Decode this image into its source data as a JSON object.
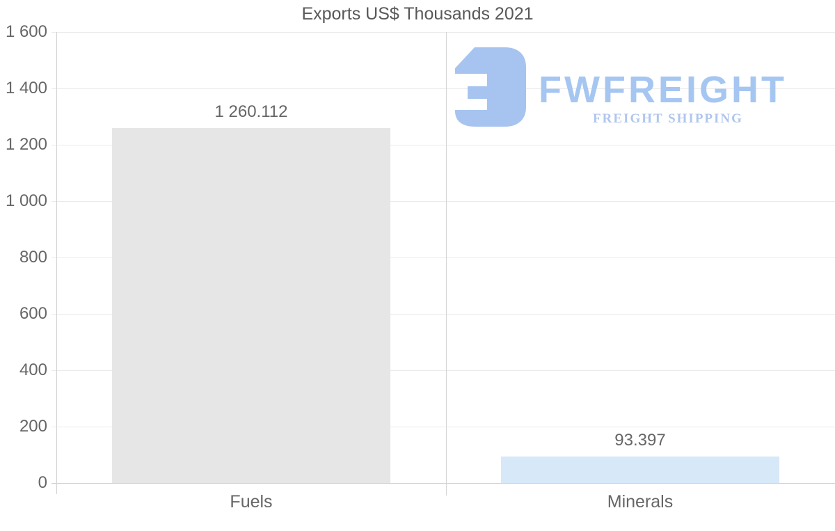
{
  "chart_data": {
    "type": "bar",
    "title": "Exports US$ Thousands 2021",
    "categories": [
      "Fuels",
      "Minerals"
    ],
    "values": [
      1260.112,
      93.397
    ],
    "value_labels": [
      "1 260.112",
      "93.397"
    ],
    "bar_colors": [
      "#e6e6e6",
      "#d7e8f9"
    ],
    "xlabel": "",
    "ylabel": "",
    "ylim": [
      0,
      1600
    ],
    "yticks": [
      {
        "value": 0,
        "label": "0"
      },
      {
        "value": 200,
        "label": "200"
      },
      {
        "value": 400,
        "label": "400"
      },
      {
        "value": 600,
        "label": "600"
      },
      {
        "value": 800,
        "label": "800"
      },
      {
        "value": 1000,
        "label": "1 000"
      },
      {
        "value": 1200,
        "label": "1 200"
      },
      {
        "value": 1400,
        "label": "1 400"
      },
      {
        "value": 1600,
        "label": "1 600"
      }
    ],
    "grid": true,
    "legend": "none"
  },
  "logo": {
    "brand": "FWFREIGHT",
    "tagline": "FREIGHT SHIPPING",
    "mark_color": "#a6c4ef"
  },
  "colors": {
    "title": "#595959",
    "axis_label": "#666666",
    "gridline": "#eaeaea",
    "axis_line": "#d2d2d2",
    "background": "#ffffff"
  }
}
